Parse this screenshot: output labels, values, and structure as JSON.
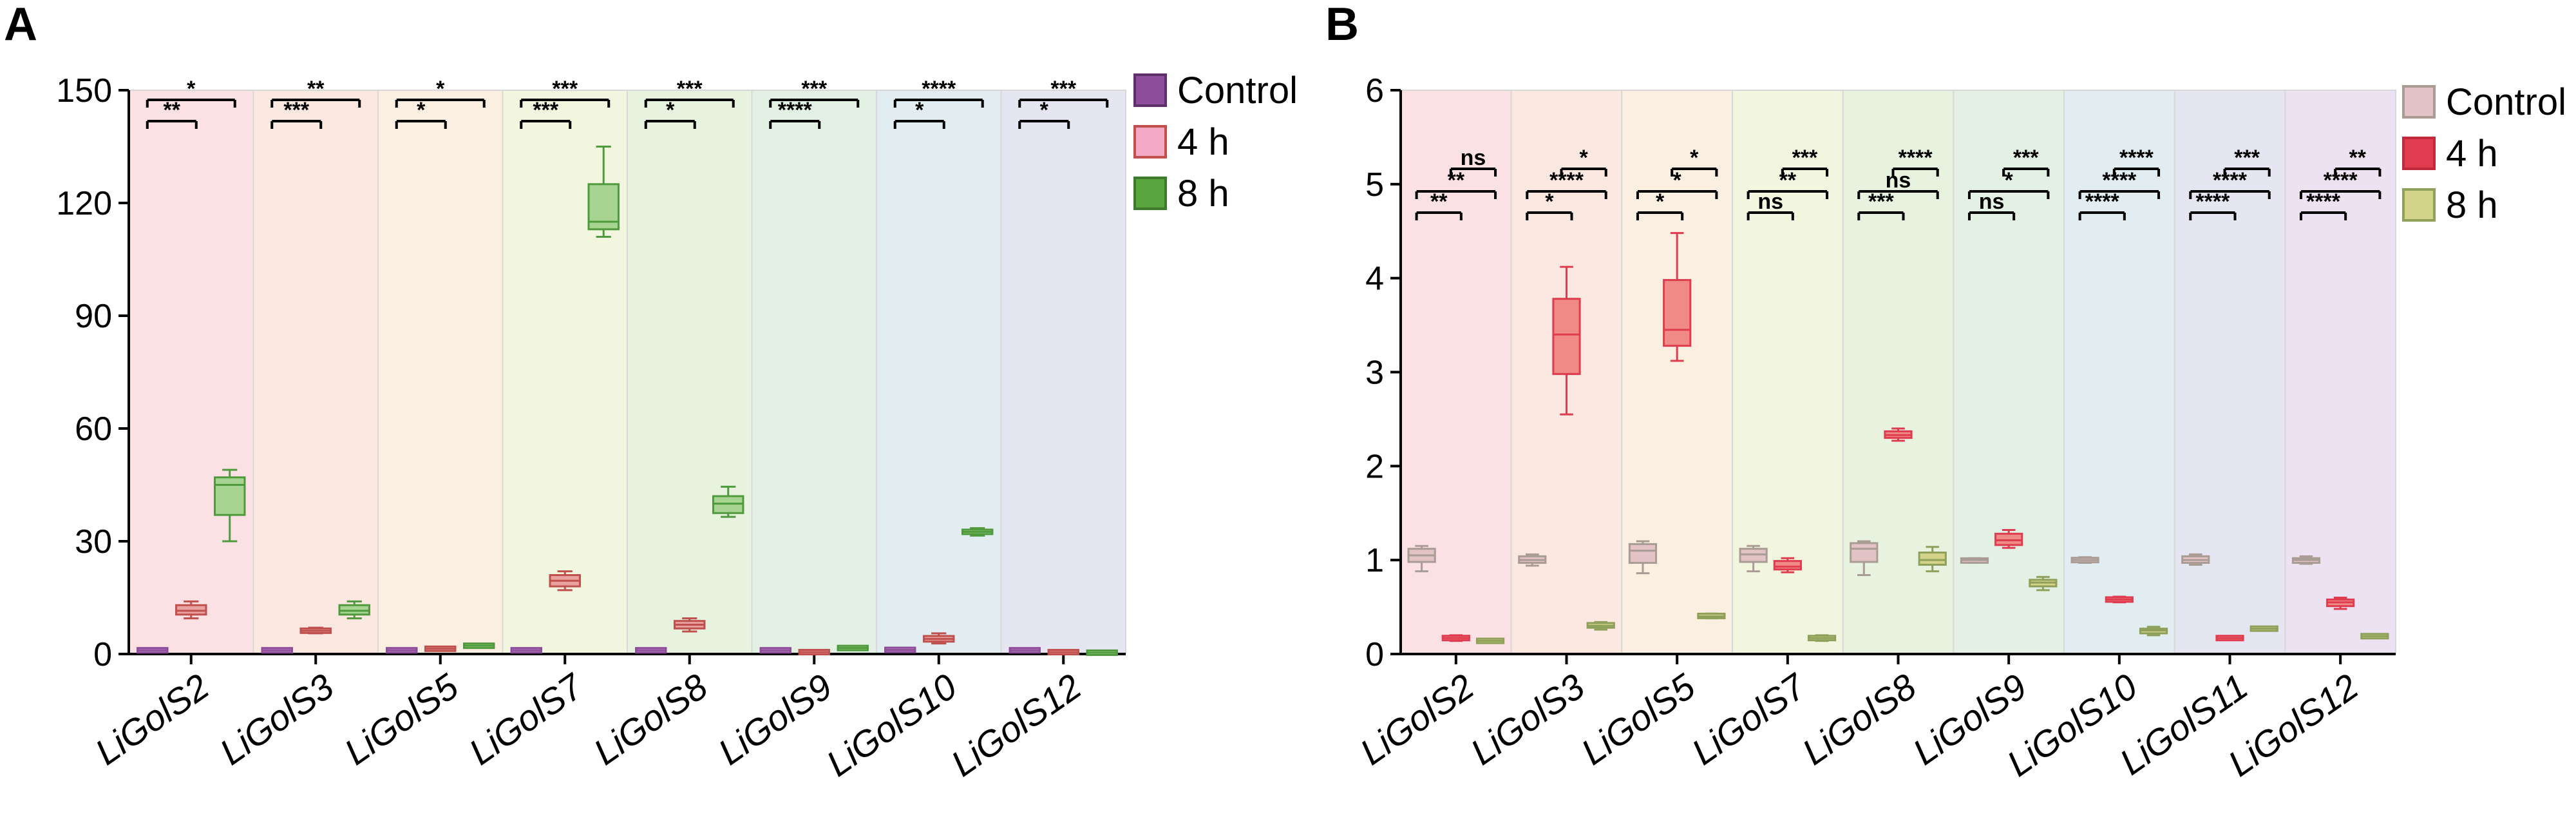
{
  "chart_data": [
    {
      "panel": "A",
      "type": "box",
      "ylim": [
        0,
        150
      ],
      "yticks": [
        "0",
        "30",
        "60",
        "90",
        "120",
        "150"
      ],
      "categories": [
        "LiGolS2",
        "LiGolS3",
        "LiGolS5",
        "LiGolS7",
        "LiGolS8",
        "LiGolS9",
        "LiGolS10",
        "LiGolS12"
      ],
      "legend_position": "top-right",
      "series": [
        {
          "name": "Control",
          "color": "#8e4d9a",
          "light": "#c79ccf",
          "boxes": [
            [
              1,
              1,
              1,
              1,
              1
            ],
            [
              1,
              1,
              1,
              1,
              1
            ],
            [
              1,
              1,
              1,
              1,
              1
            ],
            [
              1,
              1,
              1,
              1,
              1
            ],
            [
              1,
              1,
              1,
              1,
              1
            ],
            [
              1,
              1,
              1,
              1,
              1
            ],
            [
              0.9,
              1,
              1.1,
              1.2,
              1.3
            ],
            [
              1,
              1,
              1,
              1,
              1
            ]
          ]
        },
        {
          "name": "4 h",
          "color": "#c0504d",
          "light": "#e8a3a1",
          "boxes": [
            [
              9.5,
              10.5,
              11.5,
              13,
              14
            ],
            [
              5.5,
              5.8,
              6.2,
              6.6,
              7
            ],
            [
              1,
              1.2,
              1.4,
              1.6,
              1.8
            ],
            [
              17,
              18,
              19.5,
              21,
              22
            ],
            [
              6,
              6.8,
              7.8,
              8.8,
              9.5
            ],
            [
              0.3,
              0.4,
              0.5,
              0.6,
              0.7
            ],
            [
              2.8,
              3.3,
              4,
              4.8,
              5.5
            ],
            [
              0.3,
              0.4,
              0.5,
              0.6,
              0.7
            ]
          ]
        },
        {
          "name": "8 h",
          "color": "#4f9a3d",
          "light": "#a7d591",
          "boxes": [
            [
              30,
              37,
              45,
              47,
              49
            ],
            [
              9.5,
              10.5,
              11.5,
              13,
              14
            ],
            [
              1.8,
              2,
              2.2,
              2.4,
              2.6
            ],
            [
              111,
              113,
              115,
              125,
              135
            ],
            [
              36.5,
              37.5,
              40,
              42,
              44.5
            ],
            [
              1.2,
              1.4,
              1.6,
              1.8,
              2
            ],
            [
              31.5,
              32,
              32.5,
              33,
              33.5
            ],
            [
              0.2,
              0.3,
              0.35,
              0.4,
              0.5
            ]
          ]
        }
      ],
      "significance": [
        {
          "upper": "*",
          "lower": "**"
        },
        {
          "upper": "**",
          "lower": "***"
        },
        {
          "upper": "*",
          "lower": "*"
        },
        {
          "upper": "***",
          "lower": "***"
        },
        {
          "upper": "***",
          "lower": "*"
        },
        {
          "upper": "***",
          "lower": "****"
        },
        {
          "upper": "****",
          "lower": "*"
        },
        {
          "upper": "***",
          "lower": "*"
        }
      ]
    },
    {
      "panel": "B",
      "type": "box",
      "ylim": [
        0,
        6
      ],
      "yticks": [
        "0",
        "1",
        "2",
        "3",
        "4",
        "5",
        "6"
      ],
      "categories": [
        "LiGolS2",
        "LiGolS3",
        "LiGolS5",
        "LiGolS7",
        "LiGolS8",
        "LiGolS9",
        "LiGolS10",
        "LiGolS11",
        "LiGolS12"
      ],
      "legend_position": "top-right",
      "series": [
        {
          "name": "Control",
          "color": "#a99c94",
          "light": "#e4c3c6",
          "boxes": [
            [
              0.88,
              0.98,
              1.05,
              1.12,
              1.15
            ],
            [
              0.94,
              0.97,
              1.0,
              1.04,
              1.06
            ],
            [
              0.86,
              0.97,
              1.1,
              1.17,
              1.2
            ],
            [
              0.88,
              0.98,
              1.06,
              1.12,
              1.15
            ],
            [
              0.84,
              0.98,
              1.12,
              1.18,
              1.2
            ],
            [
              0.97,
              0.98,
              1.0,
              1.01,
              1.02
            ],
            [
              0.97,
              0.98,
              1.0,
              1.02,
              1.03
            ],
            [
              0.95,
              0.97,
              1.0,
              1.04,
              1.06
            ],
            [
              0.96,
              0.97,
              1.0,
              1.02,
              1.04
            ]
          ]
        },
        {
          "name": "4 h",
          "color": "#e03c50",
          "light": "#ef8a86",
          "boxes": [
            [
              0.14,
              0.15,
              0.17,
              0.19,
              0.2
            ],
            [
              2.55,
              2.98,
              3.4,
              3.78,
              4.12
            ],
            [
              3.12,
              3.28,
              3.45,
              3.98,
              4.48
            ],
            [
              0.87,
              0.9,
              0.93,
              0.99,
              1.02
            ],
            [
              2.27,
              2.3,
              2.33,
              2.37,
              2.4
            ],
            [
              1.13,
              1.16,
              1.21,
              1.28,
              1.32
            ],
            [
              0.55,
              0.56,
              0.58,
              0.6,
              0.61
            ],
            [
              0.15,
              0.16,
              0.17,
              0.18,
              0.19
            ],
            [
              0.48,
              0.51,
              0.55,
              0.58,
              0.6
            ]
          ]
        },
        {
          "name": "8 h",
          "color": "#8fa05a",
          "light": "#d4d38a",
          "boxes": [
            [
              0.12,
              0.13,
              0.14,
              0.15,
              0.16
            ],
            [
              0.26,
              0.28,
              0.3,
              0.33,
              0.34
            ],
            [
              0.38,
              0.39,
              0.4,
              0.42,
              0.43
            ],
            [
              0.14,
              0.15,
              0.17,
              0.19,
              0.2
            ],
            [
              0.88,
              0.95,
              1.0,
              1.08,
              1.14
            ],
            [
              0.68,
              0.72,
              0.76,
              0.79,
              0.82
            ],
            [
              0.2,
              0.22,
              0.25,
              0.27,
              0.29
            ],
            [
              0.25,
              0.26,
              0.27,
              0.28,
              0.29
            ],
            [
              0.17,
              0.18,
              0.19,
              0.2,
              0.21
            ]
          ]
        }
      ],
      "significance": [
        {
          "top": "ns",
          "mid": "**",
          "bot": "**"
        },
        {
          "top": "*",
          "mid": "****",
          "bot": "*"
        },
        {
          "top": "*",
          "mid": "*",
          "bot": "*"
        },
        {
          "top": "***",
          "mid": "**",
          "bot": "ns"
        },
        {
          "top": "****",
          "mid": "ns",
          "bot": "***"
        },
        {
          "top": "***",
          "mid": "*",
          "bot": "ns"
        },
        {
          "top": "****",
          "mid": "****",
          "bot": "****"
        },
        {
          "top": "***",
          "mid": "****",
          "bot": "****"
        },
        {
          "top": "**",
          "mid": "****",
          "bot": "****"
        }
      ]
    }
  ],
  "panel_bg_colors": [
    "#fbe1e4",
    "#fbe9e1",
    "#fbefe1",
    "#f2f6df",
    "#e7f2df",
    "#e3f1e5",
    "#e2edf1",
    "#e6e6f3",
    "#ece2f1"
  ]
}
